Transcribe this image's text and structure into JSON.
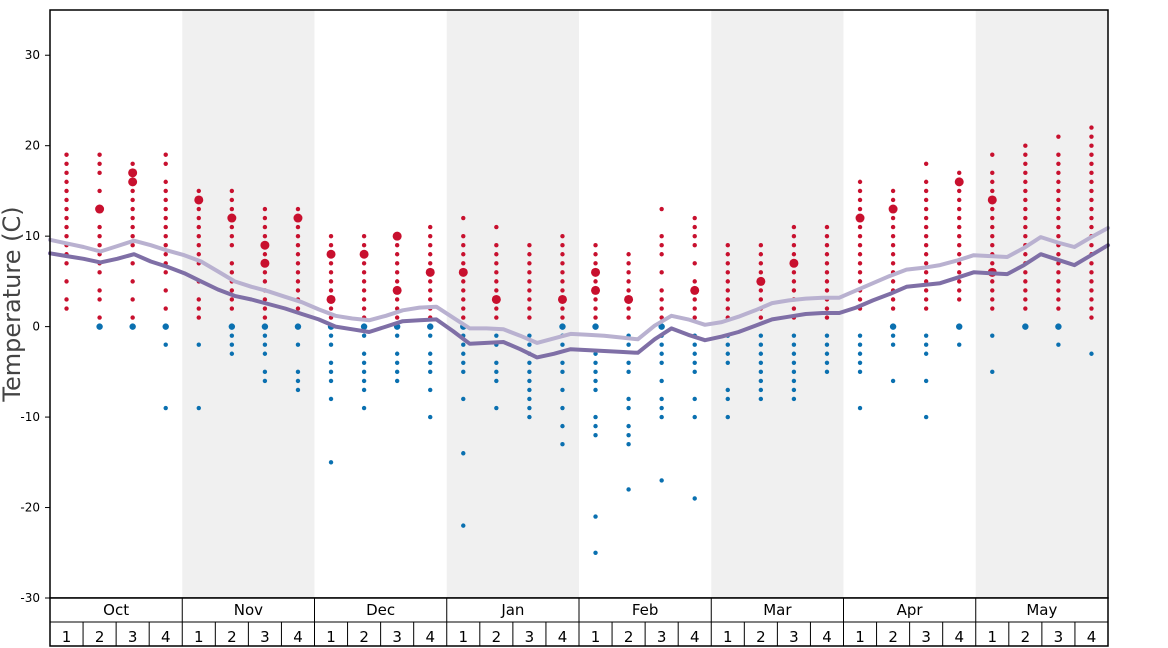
{
  "chart_data": {
    "type": "scatter",
    "title": "",
    "ylabel": "Temperature (C)",
    "ylim": [
      -30,
      35
    ],
    "yticks": [
      -30,
      -20,
      -10,
      0,
      10,
      20,
      30
    ],
    "months": [
      "Oct",
      "Nov",
      "Dec",
      "Jan",
      "Feb",
      "Mar",
      "Apr",
      "May"
    ],
    "weeks": [
      "1",
      "2",
      "3",
      "4"
    ],
    "colors": {
      "warm": "#c8102e",
      "cold": "#0a70b0",
      "mean": "#7f6fa6",
      "mean_light": "#b9b1d0",
      "band": "#f0f0f0"
    },
    "series": [
      {
        "name": "",
        "values": [
          9.6,
          9.2,
          8.8,
          8.3,
          8.9,
          9.5,
          9.0,
          8.4,
          7.9,
          7.2,
          6.1,
          5.0,
          4.4,
          3.9,
          3.3,
          2.7,
          1.9,
          1.2,
          0.9,
          0.7,
          1.2,
          1.8,
          2.1,
          2.2,
          1.0,
          -0.2,
          -0.2,
          -0.3,
          -1.0,
          -1.8,
          -1.3,
          -0.8,
          -0.9,
          -1.0,
          -1.2,
          -1.4,
          0.1,
          1.2,
          0.8,
          0.2,
          0.5,
          1.1,
          1.8,
          2.6,
          2.9,
          3.1,
          3.2,
          3.2,
          4.0,
          4.8,
          5.6,
          6.3,
          6.5,
          6.8,
          7.3,
          7.9,
          7.8,
          7.7,
          8.7,
          9.9,
          9.3,
          8.8,
          9.9,
          10.9
        ]
      },
      {
        "name": "",
        "values": [
          8.1,
          7.8,
          7.5,
          7.1,
          7.5,
          8.0,
          7.2,
          6.6,
          5.9,
          5.0,
          4.1,
          3.4,
          3.0,
          2.5,
          2.0,
          1.4,
          0.8,
          0.0,
          -0.3,
          -0.6,
          0.0,
          0.6,
          0.7,
          0.8,
          -0.5,
          -1.9,
          -1.8,
          -1.7,
          -2.5,
          -3.4,
          -3.0,
          -2.5,
          -2.6,
          -2.7,
          -2.8,
          -2.9,
          -1.4,
          -0.2,
          -0.9,
          -1.5,
          -1.1,
          -0.6,
          0.1,
          0.8,
          1.1,
          1.4,
          1.5,
          1.5,
          2.1,
          2.9,
          3.6,
          4.4,
          4.6,
          4.8,
          5.4,
          6.0,
          5.9,
          5.8,
          6.8,
          8.0,
          7.4,
          6.8,
          7.9,
          9.0
        ]
      }
    ],
    "scatter": [
      {
        "t": [
          19,
          18,
          17,
          16,
          15,
          14,
          13,
          12,
          11,
          10,
          9,
          8,
          7,
          5,
          3,
          2
        ],
        "big": [],
        "cold": []
      },
      {
        "t": [
          19,
          18,
          17,
          15,
          13,
          11,
          10,
          9,
          8,
          7,
          6,
          4,
          3,
          1
        ],
        "big": [
          13
        ],
        "cold": [
          0
        ]
      },
      {
        "t": [
          18,
          17,
          16,
          15,
          14,
          13,
          12,
          11,
          10,
          9,
          7,
          5,
          3,
          1
        ],
        "big": [
          17,
          16
        ],
        "cold": [
          0
        ]
      },
      {
        "t": [
          19,
          18,
          16,
          15,
          14,
          13,
          12,
          11,
          10,
          9,
          8,
          7,
          6,
          4,
          2
        ],
        "big": [],
        "cold": [
          0,
          -2,
          -9
        ]
      },
      {
        "t": [
          15,
          14,
          13,
          12,
          11,
          10,
          9,
          8,
          7,
          5,
          3,
          2,
          1
        ],
        "big": [
          14
        ],
        "cold": [
          -2,
          -9
        ]
      },
      {
        "t": [
          15,
          14,
          13,
          12,
          11,
          10,
          9,
          7,
          6,
          5,
          4,
          3,
          2
        ],
        "big": [
          12
        ],
        "cold": [
          0,
          -1,
          -2,
          -3
        ]
      },
      {
        "t": [
          13,
          12,
          11,
          10,
          9,
          8,
          7,
          6,
          5,
          4,
          3,
          2,
          1
        ],
        "big": [
          9,
          7
        ],
        "cold": [
          0,
          -1,
          -2,
          -3,
          -5,
          -6
        ]
      },
      {
        "t": [
          13,
          12,
          11,
          10,
          9,
          8,
          7,
          6,
          5,
          4,
          3,
          2
        ],
        "big": [
          12
        ],
        "cold": [
          0,
          -2,
          -5,
          -6,
          -7
        ]
      },
      {
        "t": [
          10,
          9,
          8,
          7,
          6,
          5,
          4,
          3,
          2,
          1
        ],
        "big": [
          8,
          3
        ],
        "cold": [
          0,
          -1,
          -2,
          -4,
          -5,
          -6,
          -8,
          -15
        ]
      },
      {
        "t": [
          10,
          9,
          8,
          7,
          6,
          5,
          4,
          3,
          2,
          1
        ],
        "big": [
          8
        ],
        "cold": [
          0,
          -1,
          -3,
          -4,
          -5,
          -6,
          -7,
          -9
        ]
      },
      {
        "t": [
          10,
          9,
          8,
          7,
          6,
          5,
          4,
          3,
          2,
          1
        ],
        "big": [
          10,
          4
        ],
        "cold": [
          0,
          -1,
          -3,
          -4,
          -5,
          -6
        ]
      },
      {
        "t": [
          11,
          10,
          9,
          8,
          7,
          6,
          5,
          4,
          3,
          2,
          1
        ],
        "big": [
          6
        ],
        "cold": [
          0,
          -1,
          -3,
          -4,
          -5,
          -7,
          -10
        ]
      },
      {
        "t": [
          12,
          10,
          9,
          8,
          7,
          6,
          5,
          4,
          3,
          2,
          1
        ],
        "big": [
          6
        ],
        "cold": [
          0,
          -1,
          -2,
          -3,
          -4,
          -5,
          -8,
          -14,
          -22
        ]
      },
      {
        "t": [
          11,
          9,
          8,
          7,
          6,
          5,
          4,
          3,
          2,
          1
        ],
        "big": [
          3
        ],
        "cold": [
          -1,
          -2,
          -4,
          -5,
          -6,
          -9
        ]
      },
      {
        "t": [
          9,
          8,
          7,
          6,
          5,
          4,
          3,
          2,
          1
        ],
        "big": [],
        "cold": [
          -1,
          -2,
          -3,
          -4,
          -5,
          -6,
          -7,
          -8,
          -9,
          -10
        ]
      },
      {
        "t": [
          10,
          9,
          8,
          7,
          6,
          5,
          4,
          3,
          2,
          1
        ],
        "big": [
          3
        ],
        "cold": [
          0,
          -1,
          -2,
          -4,
          -5,
          -7,
          -9,
          -11,
          -13
        ]
      },
      {
        "t": [
          9,
          8,
          7,
          6,
          5,
          4,
          3,
          2,
          1
        ],
        "big": [
          6,
          4
        ],
        "cold": [
          0,
          -3,
          -4,
          -5,
          -6,
          -7,
          -10,
          -11,
          -12,
          -21,
          -25
        ]
      },
      {
        "t": [
          8,
          7,
          6,
          5,
          4,
          3,
          2,
          1
        ],
        "big": [
          3
        ],
        "cold": [
          -1,
          -2,
          -4,
          -5,
          -8,
          -9,
          -11,
          -12,
          -13,
          -18
        ]
      },
      {
        "t": [
          13,
          10,
          9,
          8,
          6,
          4,
          3,
          2,
          1
        ],
        "big": [],
        "cold": [
          0,
          -1,
          -2,
          -3,
          -4,
          -6,
          -8,
          -9,
          -10,
          -17
        ]
      },
      {
        "t": [
          12,
          11,
          10,
          9,
          7,
          5,
          4,
          3,
          2,
          1
        ],
        "big": [
          4
        ],
        "cold": [
          -1,
          -2,
          -3,
          -4,
          -5,
          -8,
          -10,
          -19
        ]
      },
      {
        "t": [
          9,
          8,
          7,
          6,
          5,
          4,
          3,
          2,
          1
        ],
        "big": [],
        "cold": [
          -1,
          -2,
          -3,
          -4,
          -7,
          -8,
          -10
        ]
      },
      {
        "t": [
          9,
          8,
          7,
          6,
          5,
          4,
          3,
          2,
          1
        ],
        "big": [
          5
        ],
        "cold": [
          -1,
          -2,
          -3,
          -4,
          -5,
          -6,
          -7,
          -8
        ]
      },
      {
        "t": [
          11,
          10,
          9,
          8,
          7,
          6,
          5,
          4,
          3,
          2,
          1
        ],
        "big": [
          7
        ],
        "cold": [
          -1,
          -2,
          -3,
          -4,
          -5,
          -6,
          -7,
          -8
        ]
      },
      {
        "t": [
          11,
          10,
          9,
          8,
          7,
          6,
          5,
          4,
          3,
          2,
          1
        ],
        "big": [],
        "cold": [
          -1,
          -2,
          -3,
          -4,
          -5
        ]
      },
      {
        "t": [
          16,
          15,
          14,
          13,
          12,
          11,
          10,
          9,
          8,
          7,
          6,
          5,
          4,
          3,
          2
        ],
        "big": [
          12
        ],
        "cold": [
          -1,
          -2,
          -3,
          -4,
          -5,
          -9
        ]
      },
      {
        "t": [
          15,
          14,
          13,
          12,
          11,
          10,
          9,
          8,
          7,
          6,
          5,
          4,
          3,
          2
        ],
        "big": [
          13
        ],
        "cold": [
          0,
          -1,
          -2,
          -6
        ]
      },
      {
        "t": [
          18,
          16,
          15,
          14,
          13,
          12,
          11,
          10,
          9,
          8,
          7,
          6,
          5,
          4,
          3,
          2
        ],
        "big": [],
        "cold": [
          -1,
          -2,
          -3,
          -6,
          -10
        ]
      },
      {
        "t": [
          17,
          16,
          15,
          14,
          13,
          12,
          11,
          10,
          9,
          8,
          7,
          6,
          5,
          4,
          3
        ],
        "big": [
          16
        ],
        "cold": [
          0,
          -2
        ]
      },
      {
        "t": [
          19,
          17,
          16,
          15,
          14,
          13,
          12,
          11,
          10,
          9,
          8,
          7,
          6,
          5,
          4,
          3,
          2
        ],
        "big": [
          14,
          6
        ],
        "cold": [
          -1,
          -5
        ]
      },
      {
        "t": [
          20,
          19,
          18,
          17,
          16,
          15,
          14,
          13,
          12,
          11,
          10,
          9,
          8,
          7,
          6,
          5,
          4,
          3,
          2
        ],
        "big": [],
        "cold": [
          0
        ]
      },
      {
        "t": [
          21,
          19,
          18,
          17,
          16,
          15,
          14,
          13,
          12,
          11,
          10,
          9,
          8,
          7,
          6,
          5,
          4,
          3,
          2
        ],
        "big": [],
        "cold": [
          0,
          -2
        ]
      },
      {
        "t": [
          22,
          21,
          20,
          19,
          18,
          17,
          16,
          15,
          14,
          13,
          12,
          11,
          10,
          9,
          8,
          7,
          6,
          5,
          4,
          3,
          2,
          1
        ],
        "big": [],
        "cold": [
          -3
        ]
      }
    ]
  }
}
